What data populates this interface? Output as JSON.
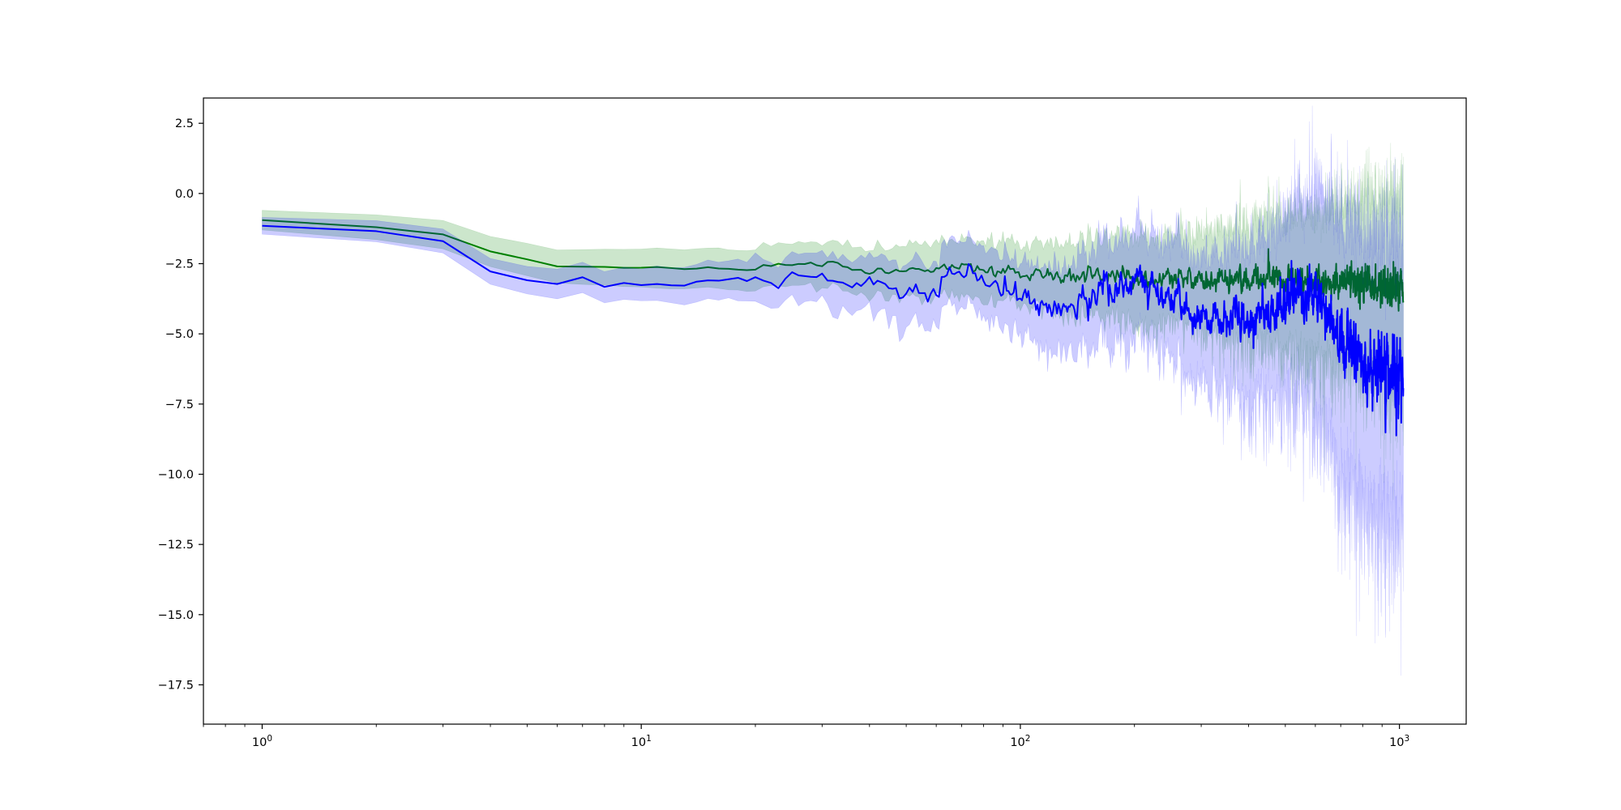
{
  "chart_data": {
    "type": "line",
    "title": "",
    "xlabel": "",
    "ylabel": "",
    "xscale": "log",
    "xlim": [
      0.7,
      1500
    ],
    "ylim": [
      -18.9,
      3.4
    ],
    "grid": false,
    "legend": "none",
    "x_ticks": [
      {
        "value": 1,
        "base": "10",
        "exp": "0"
      },
      {
        "value": 10,
        "base": "10",
        "exp": "1"
      },
      {
        "value": 100,
        "base": "10",
        "exp": "2"
      },
      {
        "value": 1000,
        "base": "10",
        "exp": "3"
      }
    ],
    "y_ticks": [
      {
        "value": 2.5,
        "label": "2.5"
      },
      {
        "value": 0,
        "label": "0.0"
      },
      {
        "value": -2.5,
        "label": "−2.5"
      },
      {
        "value": -5,
        "label": "−5.0"
      },
      {
        "value": -7.5,
        "label": "−7.5"
      },
      {
        "value": -10,
        "label": "−10.0"
      },
      {
        "value": -12.5,
        "label": "−12.5"
      },
      {
        "value": -15,
        "label": "−15.0"
      },
      {
        "value": -17.5,
        "label": "−17.5"
      }
    ],
    "x_range": [
      1,
      1024
    ],
    "series": [
      {
        "color": "#008000",
        "band_color": "#008000",
        "band_opacity": 0.2,
        "mean_points": [
          [
            1,
            -0.95
          ],
          [
            2,
            -1.2
          ],
          [
            3,
            -1.45
          ],
          [
            4,
            -2.05
          ],
          [
            6,
            -2.6
          ],
          [
            10,
            -2.65
          ],
          [
            20,
            -2.68
          ],
          [
            25,
            -2.45
          ],
          [
            30,
            -2.5
          ],
          [
            40,
            -2.78
          ],
          [
            70,
            -2.6
          ],
          [
            100,
            -2.85
          ],
          [
            200,
            -2.95
          ],
          [
            300,
            -3.1
          ],
          [
            500,
            -3.05
          ],
          [
            700,
            -3.2
          ],
          [
            1000,
            -3.35
          ]
        ],
        "mean_noise_points": [
          [
            1,
            0
          ],
          [
            10,
            0.03
          ],
          [
            30,
            0.1
          ],
          [
            100,
            0.18
          ],
          [
            300,
            0.32
          ],
          [
            700,
            0.45
          ],
          [
            1024,
            0.6
          ]
        ],
        "band_half_width_points": [
          [
            1,
            0.35
          ],
          [
            10,
            0.65
          ],
          [
            30,
            0.7
          ],
          [
            100,
            0.95
          ],
          [
            300,
            1.4
          ],
          [
            600,
            2.0
          ],
          [
            1024,
            2.8
          ]
        ],
        "band_noise_points": [
          [
            1,
            0
          ],
          [
            10,
            0.03
          ],
          [
            100,
            0.25
          ],
          [
            300,
            0.6
          ],
          [
            700,
            1.2
          ],
          [
            1024,
            1.5
          ]
        ]
      },
      {
        "color": "#0000ff",
        "band_color": "#0000ff",
        "band_opacity": 0.2,
        "mean_points": [
          [
            1,
            -1.15
          ],
          [
            2,
            -1.35
          ],
          [
            3,
            -1.7
          ],
          [
            4,
            -2.75
          ],
          [
            5,
            -3.1
          ],
          [
            6,
            -3.2
          ],
          [
            7,
            -3.0
          ],
          [
            8,
            -3.35
          ],
          [
            9,
            -3.2
          ],
          [
            15,
            -3.2
          ],
          [
            20,
            -3.05
          ],
          [
            23,
            -3.5
          ],
          [
            25,
            -2.85
          ],
          [
            30,
            -2.85
          ],
          [
            40,
            -3.2
          ],
          [
            60,
            -3.6
          ],
          [
            70,
            -2.6
          ],
          [
            100,
            -3.7
          ],
          [
            130,
            -4.1
          ],
          [
            200,
            -3.2
          ],
          [
            300,
            -4.3
          ],
          [
            400,
            -4.5
          ],
          [
            500,
            -3.9
          ],
          [
            600,
            -3.6
          ],
          [
            700,
            -5.2
          ],
          [
            850,
            -6.4
          ],
          [
            1000,
            -6.4
          ]
        ],
        "mean_noise_points": [
          [
            1,
            0
          ],
          [
            10,
            0.05
          ],
          [
            20,
            0.15
          ],
          [
            40,
            0.3
          ],
          [
            100,
            0.4
          ],
          [
            300,
            0.55
          ],
          [
            600,
            0.8
          ],
          [
            1024,
            1.2
          ]
        ],
        "band_half_width_points": [
          [
            1,
            0.3
          ],
          [
            4,
            0.45
          ],
          [
            10,
            0.55
          ],
          [
            30,
            0.75
          ],
          [
            100,
            1.1
          ],
          [
            300,
            1.8
          ],
          [
            500,
            2.3
          ],
          [
            700,
            3.5
          ],
          [
            1024,
            4.0
          ]
        ],
        "band_noise_points": [
          [
            1,
            0
          ],
          [
            10,
            0.05
          ],
          [
            100,
            0.35
          ],
          [
            300,
            0.8
          ],
          [
            700,
            1.8
          ],
          [
            1024,
            2.5
          ]
        ]
      }
    ]
  }
}
